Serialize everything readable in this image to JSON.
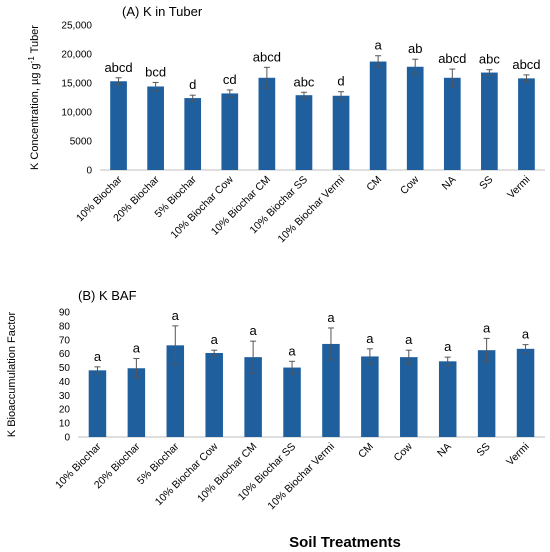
{
  "figure": {
    "x_title": "Soil Treatments"
  },
  "colors": {
    "bar": "#1f5f9e",
    "axis": "#bfbfbf",
    "error": "#555555"
  },
  "chart_data": [
    {
      "type": "bar",
      "title": "(A) K in Tuber",
      "ylabel_main": "K Concentration, µg g",
      "ylabel_sup": "-1",
      "ylabel_tail": " Tuber",
      "ylim": [
        0,
        25000
      ],
      "yticks": [
        "0",
        "5000",
        "10,000",
        "15,000",
        "20,000",
        "25,000"
      ],
      "ytick_values": [
        0,
        5000,
        10000,
        15000,
        20000,
        25000
      ],
      "categories": [
        "10% Biochar",
        "20% Biochar",
        "5% Biochar",
        "10% Biochar Cow",
        "10% Biochar CM",
        "10% Biochar SS",
        "10% Biochar Vermi",
        "CM",
        "Cow",
        "NA",
        "SS",
        "Vermi"
      ],
      "values": [
        15300,
        14400,
        12400,
        13200,
        15900,
        12900,
        12800,
        18700,
        17800,
        15900,
        16800,
        15800
      ],
      "errors": [
        600,
        700,
        500,
        600,
        1800,
        500,
        700,
        1000,
        1300,
        1500,
        500,
        600
      ],
      "significance": [
        "abcd",
        "bcd",
        "d",
        "cd",
        "abcd",
        "abc",
        "d",
        "a",
        "ab",
        "abcd",
        "abc",
        "abcd"
      ],
      "grid": false,
      "legend": "none"
    },
    {
      "type": "bar",
      "title": "(B) K BAF",
      "ylabel_main": "K Bioaccumulation Factor",
      "ylabel_sup": "",
      "ylabel_tail": "",
      "ylim": [
        0,
        90
      ],
      "yticks": [
        "0",
        "10",
        "20",
        "30",
        "40",
        "50",
        "60",
        "70",
        "80",
        "90"
      ],
      "ytick_values": [
        0,
        10,
        20,
        30,
        40,
        50,
        60,
        70,
        80,
        90
      ],
      "categories": [
        "10% Biochar",
        "20% Biochar",
        "5% Biochar",
        "10% Biochar Cow",
        "10% Biochar CM",
        "10% Biochar SS",
        "10% Biochar Vermi",
        "CM",
        "Cow",
        "NA",
        "SS",
        "Vermi"
      ],
      "values": [
        48,
        49.5,
        66,
        60.5,
        57.5,
        50,
        67,
        58,
        57.5,
        54.5,
        62.5,
        63.5
      ],
      "errors": [
        2.5,
        7,
        14,
        2,
        11.5,
        4.5,
        11.5,
        5.5,
        5,
        3,
        8.5,
        3
      ],
      "significance": [
        "a",
        "a",
        "a",
        "a",
        "a",
        "a",
        "a",
        "a",
        "a",
        "a",
        "a",
        "a"
      ],
      "grid": false,
      "legend": "none"
    }
  ]
}
